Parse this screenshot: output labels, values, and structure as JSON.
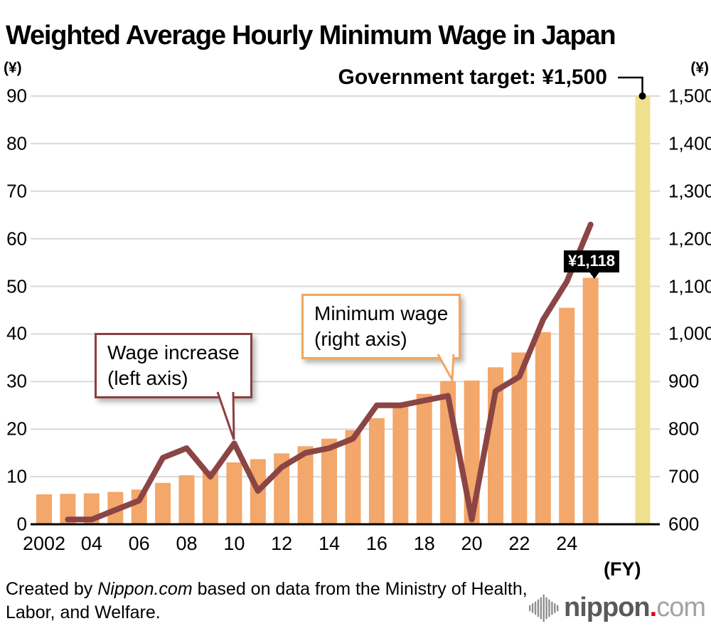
{
  "title": "Weighted Average Hourly Minimum Wage in Japan",
  "chart_data": {
    "type": "combo-bar-line",
    "title": "Weighted Average Hourly Minimum Wage in Japan",
    "fiscal_years": [
      2002,
      2003,
      2004,
      2005,
      2006,
      2007,
      2008,
      2009,
      2010,
      2011,
      2012,
      2013,
      2014,
      2015,
      2016,
      2017,
      2018,
      2019,
      2020,
      2021,
      2022,
      2023,
      2024,
      2025
    ],
    "series": [
      {
        "name": "Minimum wage (right axis)",
        "type": "bar",
        "axis": "right",
        "color": "#f3a76a",
        "values": [
          663,
          664,
          665,
          668,
          673,
          687,
          703,
          713,
          730,
          737,
          749,
          764,
          780,
          798,
          823,
          848,
          874,
          901,
          902,
          930,
          961,
          1004,
          1055,
          1118
        ]
      },
      {
        "name": "Wage increase (left axis)",
        "type": "line",
        "axis": "left",
        "color": "#8b4545",
        "values": [
          null,
          1,
          1,
          3,
          5,
          14,
          16,
          10,
          17,
          7,
          12,
          15,
          16,
          18,
          25,
          25,
          26,
          27,
          1,
          28,
          31,
          43,
          51,
          63
        ]
      }
    ],
    "target": {
      "label": "Government target: ¥1,500",
      "value": 1500,
      "color": "#eee08e"
    },
    "left_axis": {
      "unit": "(¥)",
      "min": 0,
      "max": 90,
      "step": 10,
      "tick_labels": [
        "0",
        "10",
        "20",
        "30",
        "40",
        "50",
        "60",
        "70",
        "80",
        "90"
      ]
    },
    "right_axis": {
      "unit": "(¥)",
      "min": 600,
      "max": 1500,
      "step": 100,
      "tick_labels": [
        "600",
        "700",
        "800",
        "900",
        "1,000",
        "1,100",
        "1,200",
        "1,300",
        "1,400",
        "1,500"
      ]
    },
    "x_tick_labels": [
      {
        "index": 0,
        "label": "2002"
      },
      {
        "index": 2,
        "label": "04"
      },
      {
        "index": 4,
        "label": "06"
      },
      {
        "index": 6,
        "label": "08"
      },
      {
        "index": 8,
        "label": "10"
      },
      {
        "index": 10,
        "label": "12"
      },
      {
        "index": 12,
        "label": "14"
      },
      {
        "index": 14,
        "label": "16"
      },
      {
        "index": 16,
        "label": "18"
      },
      {
        "index": 18,
        "label": "20"
      },
      {
        "index": 20,
        "label": "22"
      },
      {
        "index": 22,
        "label": "24"
      }
    ],
    "x_axis_unit": "(FY)",
    "grid": true,
    "colors": {
      "grid": "#d9d9d9",
      "axis": "#000000"
    }
  },
  "annotations": {
    "wage_increase_callout": {
      "line1": "Wage increase",
      "line2": "(left axis)"
    },
    "minimum_wage_callout": {
      "line1": "Minimum wage",
      "line2": "(right axis)"
    },
    "government_target_label": "Government target: ¥1,500",
    "latest_value_label": "¥1,118"
  },
  "footer": {
    "prefix": "Created by ",
    "brand": "Nippon.com",
    "line1_rest": " based on data from the Ministry of Health,",
    "line2": "Labor, and Welfare."
  },
  "logo": {
    "brand": "nippon",
    "dot": ".",
    "tld": "com"
  }
}
